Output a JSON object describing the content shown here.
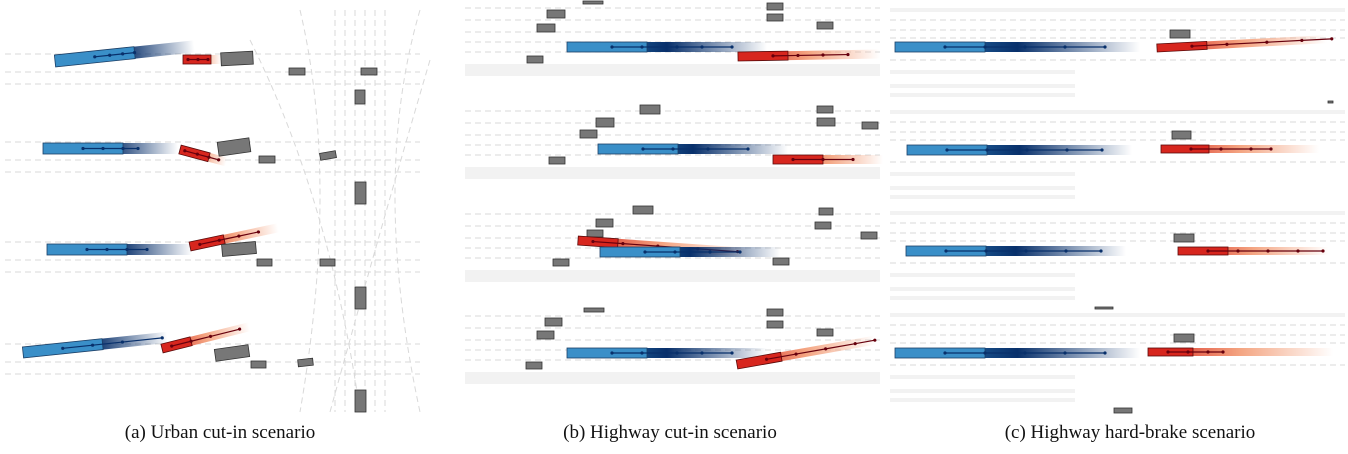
{
  "figure": {
    "captions": [
      "(a) Urban cut-in scenario",
      "(b) Highway cut-in scenario",
      "(c) Highway hard-brake scenario"
    ]
  },
  "colors": {
    "ego_blue": "#3a8fc8",
    "ego_blue_dark": "#08306b",
    "agent_red": "#d7261e",
    "agent_red_dark": "#67000d",
    "obstacle_gray": "#777777",
    "lane_line": "#d9d9d9",
    "road_shoulder": "#f2f2f2"
  }
}
